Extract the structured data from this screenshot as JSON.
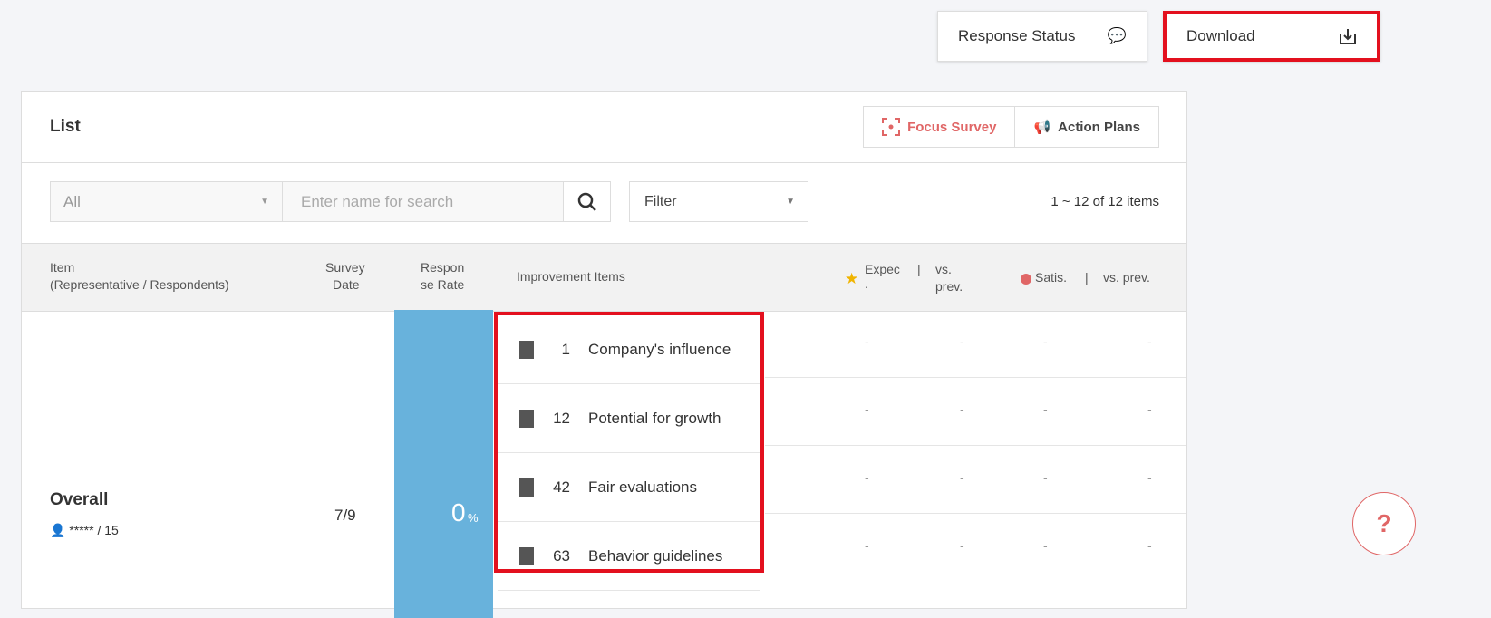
{
  "top": {
    "response_status": "Response Status",
    "download": "Download"
  },
  "panel": {
    "title": "List",
    "focus_survey": "Focus Survey",
    "action_plans": "Action Plans"
  },
  "toolbar": {
    "select_value": "All",
    "search_placeholder": "Enter name for search",
    "filter": "Filter",
    "count": "1 ~ 12 of 12 items"
  },
  "columns": {
    "item": "Item",
    "item_sub": "(Representative / Respondents)",
    "survey": "Survey",
    "date": "Date",
    "respon": "Respon",
    "se_rate": "se Rate",
    "improvement": "Improvement Items",
    "expec": "Expec",
    "expec2": ".",
    "sep": "|",
    "vs": "vs.",
    "prev": "prev.",
    "satis": "Satis.",
    "vs_prev": "vs. prev."
  },
  "row": {
    "name": "Overall",
    "respondents": "***** / 15",
    "date": "7/9",
    "rate": "0",
    "rate_unit": "%",
    "items": [
      {
        "num": "1",
        "label": "Company's influence"
      },
      {
        "num": "12",
        "label": "Potential for growth"
      },
      {
        "num": "42",
        "label": "Fair evaluations"
      },
      {
        "num": "63",
        "label": "Behavior guidelines"
      }
    ],
    "dash": "-"
  },
  "colors": {
    "accent": "#e06666",
    "rate_bar": "#68b2dc",
    "highlight": "#e3101e",
    "star": "#f0b400"
  },
  "help": "?"
}
